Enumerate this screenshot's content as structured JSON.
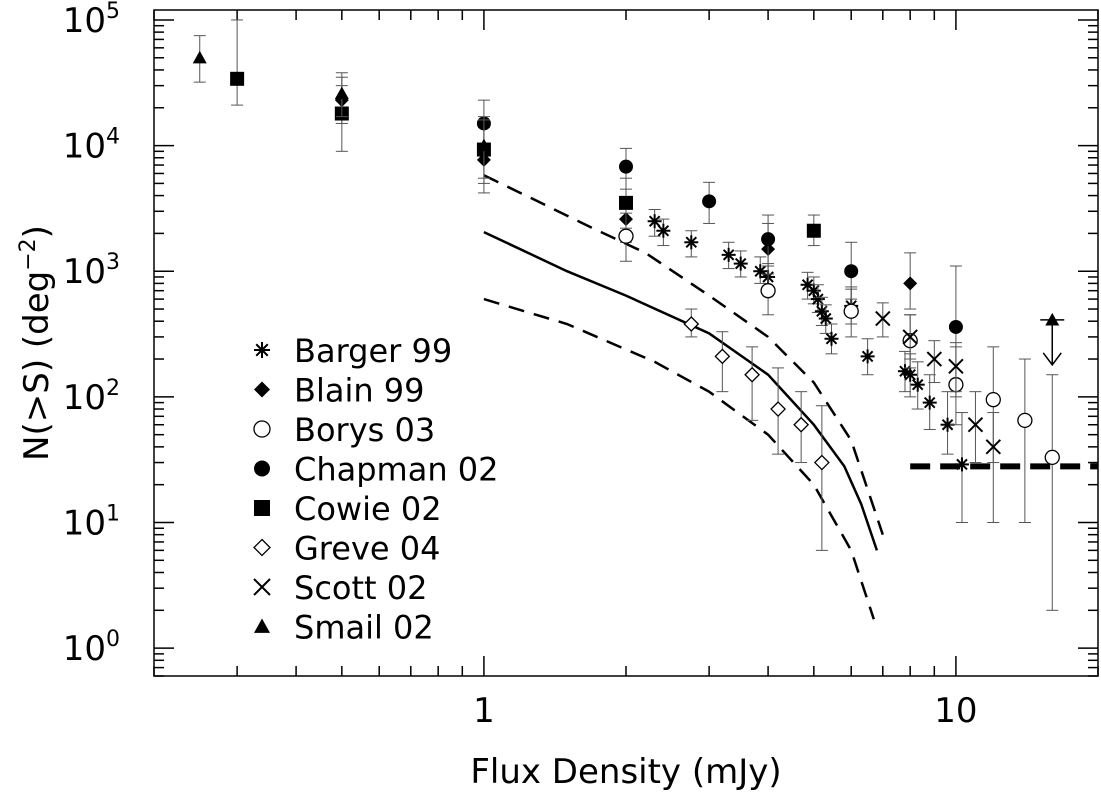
{
  "chart_data": {
    "type": "scatter",
    "xlabel": "Flux Density (mJy)",
    "ylabel_main": "N(>S) (deg",
    "ylabel_exp": "−2",
    "ylabel_close": ")",
    "xscale": "log",
    "yscale": "log",
    "xlim": [
      0.2,
      20
    ],
    "ylim": [
      0.6,
      120000
    ],
    "x_tick_labels": [
      {
        "value": 1,
        "label": "1"
      },
      {
        "value": 10,
        "label": "10"
      }
    ],
    "y_tick_labels": [
      {
        "value": 1,
        "base": "10",
        "exp": "0"
      },
      {
        "value": 10,
        "base": "10",
        "exp": "1"
      },
      {
        "value": 100,
        "base": "10",
        "exp": "2"
      },
      {
        "value": 1000,
        "base": "10",
        "exp": "3"
      },
      {
        "value": 10000,
        "base": "10",
        "exp": "4"
      },
      {
        "value": 100000,
        "base": "10",
        "exp": "5"
      }
    ],
    "legend_position": "lower-left",
    "series": [
      {
        "name": "Barger 99",
        "marker": "asterisk",
        "points": [
          [
            2.3,
            2500,
            1900,
            3100
          ],
          [
            2.4,
            2100,
            1600,
            2600
          ],
          [
            2.75,
            1700,
            1300,
            2100
          ],
          [
            3.3,
            1350,
            1050,
            1700
          ],
          [
            3.5,
            1150,
            900,
            1450
          ],
          [
            3.85,
            1000,
            800,
            1300
          ],
          [
            4.0,
            900,
            700,
            1150
          ],
          [
            4.85,
            780,
            600,
            980
          ],
          [
            5.0,
            700,
            550,
            900
          ],
          [
            5.1,
            600,
            470,
            780
          ],
          [
            5.2,
            480,
            370,
            620
          ],
          [
            5.3,
            420,
            320,
            540
          ],
          [
            5.45,
            290,
            220,
            380
          ],
          [
            6.0,
            530,
            380,
            720
          ],
          [
            6.5,
            210,
            150,
            290
          ],
          [
            7.8,
            160,
            110,
            230
          ],
          [
            8.0,
            150,
            100,
            220
          ],
          [
            8.3,
            125,
            80,
            190
          ],
          [
            8.8,
            90,
            55,
            150
          ],
          [
            9.6,
            60,
            35,
            110
          ],
          [
            10.3,
            29,
            10,
            75
          ]
        ]
      },
      {
        "name": "Blain 99",
        "marker": "diamond-filled",
        "points": [
          [
            0.5,
            23000,
            15000,
            35000
          ],
          [
            1.0,
            7700,
            4200,
            14000
          ],
          [
            2.0,
            2600,
            1700,
            3900
          ],
          [
            4.0,
            1500,
            950,
            2400
          ],
          [
            8.0,
            800,
            500,
            1400
          ]
        ]
      },
      {
        "name": "Borys 03",
        "marker": "circle-open",
        "points": [
          [
            2.0,
            1900,
            1200,
            2900
          ],
          [
            4.0,
            700,
            450,
            1100
          ],
          [
            6.0,
            480,
            300,
            750
          ],
          [
            8.0,
            280,
            170,
            450
          ],
          [
            10.0,
            125,
            60,
            250
          ],
          [
            12.0,
            95,
            30,
            250
          ],
          [
            14.0,
            65,
            10,
            200
          ],
          [
            16.0,
            33,
            2,
            150
          ]
        ]
      },
      {
        "name": "Chapman 02",
        "marker": "circle-filled",
        "points": [
          [
            1.0,
            15000,
            10000,
            23000
          ],
          [
            2.0,
            6800,
            4500,
            9500
          ],
          [
            3.0,
            3600,
            2400,
            5100
          ],
          [
            4.0,
            1800,
            1100,
            2800
          ],
          [
            6.0,
            1000,
            600,
            1700
          ],
          [
            10.0,
            360,
            100,
            1100
          ]
        ]
      },
      {
        "name": "Cowie 02",
        "marker": "square-filled",
        "points": [
          [
            0.3,
            34000,
            21000,
            100000
          ],
          [
            0.5,
            18000,
            9000,
            30000
          ],
          [
            1.0,
            9300,
            5000,
            16000
          ],
          [
            2.0,
            3500,
            2200,
            5500
          ],
          [
            5.0,
            2100,
            1600,
            2800
          ]
        ]
      },
      {
        "name": "Greve 04",
        "marker": "diamond-open",
        "points": [
          [
            2.75,
            380,
            300,
            500
          ],
          [
            3.2,
            210,
            110,
            330
          ],
          [
            3.7,
            150,
            65,
            250
          ],
          [
            4.2,
            80,
            35,
            170
          ],
          [
            4.7,
            60,
            30,
            110
          ],
          [
            5.2,
            30,
            6,
            85
          ]
        ]
      },
      {
        "name": "Scott 02",
        "marker": "cross",
        "points": [
          [
            7.0,
            420,
            300,
            560
          ],
          [
            8.0,
            300,
            200,
            450
          ],
          [
            9.0,
            200,
            130,
            280
          ],
          [
            10.0,
            175,
            110,
            270
          ],
          [
            11.0,
            60,
            30,
            110
          ],
          [
            12.0,
            40,
            10,
            75
          ]
        ]
      },
      {
        "name": "Smail 02",
        "marker": "triangle-filled",
        "points": [
          [
            0.25,
            50000,
            32000,
            75000
          ],
          [
            0.5,
            26000,
            17000,
            38000
          ],
          [
            1.0,
            10000,
            5500,
            17000
          ]
        ]
      }
    ],
    "upper_limit": {
      "series": "Smail 02",
      "x": 16.0,
      "y": 410
    },
    "model_curves": [
      {
        "style": "solid",
        "points": [
          [
            1.0,
            2050
          ],
          [
            1.5,
            1000
          ],
          [
            2.0,
            640
          ],
          [
            3.0,
            320
          ],
          [
            4.0,
            150
          ],
          [
            5.0,
            60
          ],
          [
            5.8,
            28
          ],
          [
            6.3,
            14
          ],
          [
            6.8,
            6
          ]
        ]
      },
      {
        "style": "dashed",
        "points": [
          [
            1.0,
            5800
          ],
          [
            1.3,
            3600
          ],
          [
            1.7,
            2200
          ],
          [
            2.2,
            1400
          ],
          [
            3.0,
            640
          ],
          [
            4.0,
            300
          ],
          [
            5.0,
            130
          ],
          [
            6.0,
            45
          ],
          [
            7.0,
            8
          ]
        ]
      },
      {
        "style": "dashed",
        "points": [
          [
            1.0,
            600
          ],
          [
            1.5,
            380
          ],
          [
            2.3,
            190
          ],
          [
            3.0,
            110
          ],
          [
            4.0,
            50
          ],
          [
            5.0,
            20
          ],
          [
            6.0,
            6
          ],
          [
            6.7,
            1.7
          ]
        ]
      }
    ],
    "reference_line": {
      "style": "thick-dashed",
      "y": 28,
      "x_start": 8.0,
      "x_end": 20
    }
  }
}
